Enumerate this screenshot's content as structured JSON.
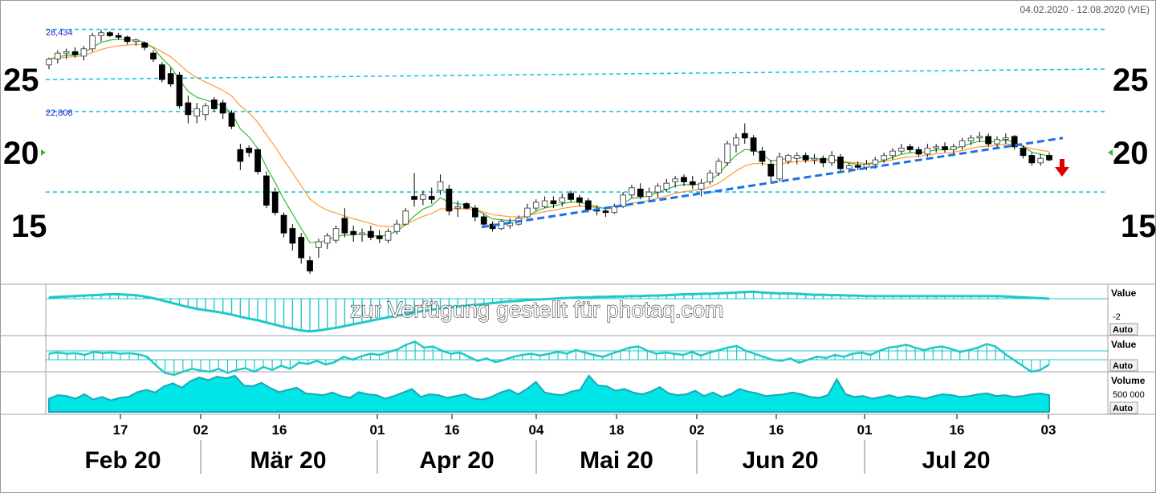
{
  "date_range": "04.02.2020 - 12.08.2020 (VIE)",
  "watermark": "zur Verfügung gestellt für photaq.com",
  "price_axis": {
    "ticks": [
      "25",
      "20",
      "15"
    ]
  },
  "levels": {
    "top_label": "28,434",
    "mid_label": "22,808"
  },
  "panes": {
    "macd": {
      "title": "Value",
      "tick": "-2",
      "auto": "Auto"
    },
    "osc": {
      "title": "Value",
      "auto": "Auto"
    },
    "volume": {
      "title": "Volume",
      "tick": "500 000",
      "auto": "Auto"
    }
  },
  "x_axis": {
    "days": [
      "17",
      "02",
      "16",
      "01",
      "16",
      "04",
      "18",
      "02",
      "16",
      "01",
      "16",
      "03"
    ],
    "months": [
      "Feb 20",
      "Mär 20",
      "Apr 20",
      "Mai 20",
      "Jun 20",
      "Jul 20"
    ]
  },
  "colors": {
    "up_candle": "#ffffff",
    "down_candle": "#000000",
    "ma_fast": "#33bb33",
    "ma_slow": "#ff9933",
    "level_line": "#00c8d8",
    "trendline": "#1a73e8",
    "signal_arrow": "#e00000",
    "indicator": "#20c8c8"
  },
  "chart_data": {
    "type": "candlestick",
    "y_range": [
      11.5,
      29.5
    ],
    "levels": [
      28.434,
      22.808,
      17.3
    ],
    "days": [
      "17",
      "02",
      "16",
      "01",
      "16",
      "04",
      "18",
      "02",
      "16",
      "01",
      "16",
      "03"
    ],
    "months": [
      "Feb 20",
      "Mär 20",
      "Apr 20",
      "Mai 20",
      "Jun 20",
      "Jul 20"
    ],
    "series": [
      {
        "name": "price",
        "values": [
          {
            "o": 26.0,
            "h": 26.5,
            "l": 25.7,
            "c": 26.4
          },
          {
            "o": 26.4,
            "h": 27.0,
            "l": 26.1,
            "c": 26.8
          },
          {
            "o": 26.8,
            "h": 27.1,
            "l": 26.4,
            "c": 26.9
          },
          {
            "o": 26.9,
            "h": 27.2,
            "l": 26.5,
            "c": 26.7
          },
          {
            "o": 26.6,
            "h": 27.3,
            "l": 26.3,
            "c": 27.1
          },
          {
            "o": 27.1,
            "h": 28.2,
            "l": 26.9,
            "c": 28.0
          },
          {
            "o": 28.0,
            "h": 28.4,
            "l": 27.6,
            "c": 28.2
          },
          {
            "o": 28.2,
            "h": 28.3,
            "l": 27.9,
            "c": 28.0
          },
          {
            "o": 28.0,
            "h": 28.2,
            "l": 27.7,
            "c": 27.9
          },
          {
            "o": 27.9,
            "h": 28.0,
            "l": 27.4,
            "c": 27.6
          },
          {
            "o": 27.6,
            "h": 27.8,
            "l": 27.3,
            "c": 27.7
          },
          {
            "o": 27.5,
            "h": 27.6,
            "l": 27.0,
            "c": 27.2
          },
          {
            "o": 26.8,
            "h": 27.0,
            "l": 26.2,
            "c": 26.4
          },
          {
            "o": 26.0,
            "h": 26.2,
            "l": 24.8,
            "c": 25.0
          },
          {
            "o": 25.4,
            "h": 25.8,
            "l": 24.5,
            "c": 24.7
          },
          {
            "o": 25.3,
            "h": 25.5,
            "l": 23.0,
            "c": 23.2
          },
          {
            "o": 23.4,
            "h": 23.9,
            "l": 22.0,
            "c": 22.6
          },
          {
            "o": 22.5,
            "h": 23.4,
            "l": 22.0,
            "c": 23.0
          },
          {
            "o": 22.6,
            "h": 23.4,
            "l": 22.2,
            "c": 23.2
          },
          {
            "o": 23.6,
            "h": 23.8,
            "l": 22.8,
            "c": 23.0
          },
          {
            "o": 23.4,
            "h": 23.6,
            "l": 22.3,
            "c": 22.7
          },
          {
            "o": 22.7,
            "h": 22.9,
            "l": 21.6,
            "c": 21.8
          },
          {
            "o": 20.2,
            "h": 20.6,
            "l": 18.8,
            "c": 19.4
          },
          {
            "o": 20.3,
            "h": 20.5,
            "l": 19.7,
            "c": 20.0
          },
          {
            "o": 20.2,
            "h": 20.3,
            "l": 18.5,
            "c": 18.7
          },
          {
            "o": 18.4,
            "h": 18.7,
            "l": 16.2,
            "c": 16.4
          },
          {
            "o": 17.3,
            "h": 17.6,
            "l": 15.7,
            "c": 15.9
          },
          {
            "o": 15.7,
            "h": 15.9,
            "l": 14.2,
            "c": 14.5
          },
          {
            "o": 14.8,
            "h": 15.1,
            "l": 13.3,
            "c": 13.8
          },
          {
            "o": 14.2,
            "h": 14.5,
            "l": 12.4,
            "c": 12.8
          },
          {
            "o": 12.6,
            "h": 12.9,
            "l": 11.7,
            "c": 11.9
          },
          {
            "o": 13.5,
            "h": 14.1,
            "l": 12.8,
            "c": 13.9
          },
          {
            "o": 13.8,
            "h": 14.5,
            "l": 13.4,
            "c": 14.3
          },
          {
            "o": 14.0,
            "h": 15.0,
            "l": 13.8,
            "c": 14.8
          },
          {
            "o": 15.5,
            "h": 16.2,
            "l": 14.2,
            "c": 14.5
          },
          {
            "o": 14.6,
            "h": 15.0,
            "l": 13.9,
            "c": 14.4
          },
          {
            "o": 14.4,
            "h": 14.8,
            "l": 13.9,
            "c": 14.5
          },
          {
            "o": 14.6,
            "h": 15.0,
            "l": 14.0,
            "c": 14.2
          },
          {
            "o": 14.3,
            "h": 14.7,
            "l": 13.8,
            "c": 14.1
          },
          {
            "o": 14.0,
            "h": 14.8,
            "l": 13.8,
            "c": 14.6
          },
          {
            "o": 14.6,
            "h": 15.4,
            "l": 14.4,
            "c": 15.1
          },
          {
            "o": 15.1,
            "h": 16.2,
            "l": 15.0,
            "c": 16.0
          },
          {
            "o": 17.0,
            "h": 18.6,
            "l": 16.3,
            "c": 16.8
          },
          {
            "o": 16.8,
            "h": 17.4,
            "l": 16.4,
            "c": 17.1
          },
          {
            "o": 17.0,
            "h": 17.6,
            "l": 16.5,
            "c": 16.8
          },
          {
            "o": 17.4,
            "h": 18.5,
            "l": 17.1,
            "c": 18.0
          },
          {
            "o": 17.5,
            "h": 17.8,
            "l": 15.7,
            "c": 16.0
          },
          {
            "o": 16.2,
            "h": 16.7,
            "l": 15.6,
            "c": 16.3
          },
          {
            "o": 16.5,
            "h": 16.6,
            "l": 16.1,
            "c": 16.2
          },
          {
            "o": 16.2,
            "h": 16.4,
            "l": 15.3,
            "c": 15.6
          },
          {
            "o": 15.6,
            "h": 15.8,
            "l": 14.9,
            "c": 15.1
          },
          {
            "o": 15.1,
            "h": 15.3,
            "l": 14.6,
            "c": 14.8
          },
          {
            "o": 14.8,
            "h": 15.4,
            "l": 14.7,
            "c": 15.3
          },
          {
            "o": 15.0,
            "h": 15.5,
            "l": 14.8,
            "c": 15.2
          },
          {
            "o": 15.1,
            "h": 15.7,
            "l": 15.0,
            "c": 15.5
          },
          {
            "o": 15.6,
            "h": 16.5,
            "l": 15.5,
            "c": 16.2
          },
          {
            "o": 16.2,
            "h": 16.8,
            "l": 16.0,
            "c": 16.6
          },
          {
            "o": 16.3,
            "h": 17.0,
            "l": 16.2,
            "c": 16.7
          },
          {
            "o": 16.7,
            "h": 17.0,
            "l": 16.2,
            "c": 16.5
          },
          {
            "o": 16.6,
            "h": 17.2,
            "l": 16.3,
            "c": 16.9
          },
          {
            "o": 17.2,
            "h": 17.4,
            "l": 16.6,
            "c": 16.8
          },
          {
            "o": 16.9,
            "h": 17.1,
            "l": 16.3,
            "c": 16.6
          },
          {
            "o": 16.7,
            "h": 16.9,
            "l": 15.9,
            "c": 16.1
          },
          {
            "o": 16.1,
            "h": 16.4,
            "l": 15.7,
            "c": 16.0
          },
          {
            "o": 16.0,
            "h": 16.3,
            "l": 15.6,
            "c": 15.9
          },
          {
            "o": 15.9,
            "h": 16.5,
            "l": 15.8,
            "c": 16.3
          },
          {
            "o": 16.3,
            "h": 17.3,
            "l": 16.2,
            "c": 17.1
          },
          {
            "o": 17.1,
            "h": 17.8,
            "l": 16.9,
            "c": 17.6
          },
          {
            "o": 17.5,
            "h": 17.9,
            "l": 16.8,
            "c": 17.0
          },
          {
            "o": 17.0,
            "h": 17.6,
            "l": 16.7,
            "c": 17.3
          },
          {
            "o": 17.3,
            "h": 17.9,
            "l": 16.9,
            "c": 17.7
          },
          {
            "o": 17.5,
            "h": 18.2,
            "l": 17.3,
            "c": 17.9
          },
          {
            "o": 18.0,
            "h": 18.4,
            "l": 17.6,
            "c": 18.2
          },
          {
            "o": 18.3,
            "h": 18.5,
            "l": 17.7,
            "c": 18.0
          },
          {
            "o": 18.0,
            "h": 18.4,
            "l": 17.5,
            "c": 17.8
          },
          {
            "o": 17.5,
            "h": 18.2,
            "l": 17.0,
            "c": 17.9
          },
          {
            "o": 18.0,
            "h": 18.8,
            "l": 17.8,
            "c": 18.6
          },
          {
            "o": 18.6,
            "h": 19.6,
            "l": 18.4,
            "c": 19.4
          },
          {
            "o": 19.3,
            "h": 20.8,
            "l": 19.1,
            "c": 20.6
          },
          {
            "o": 20.5,
            "h": 21.3,
            "l": 20.0,
            "c": 21.0
          },
          {
            "o": 21.3,
            "h": 22.0,
            "l": 20.6,
            "c": 21.0
          },
          {
            "o": 21.0,
            "h": 21.2,
            "l": 19.8,
            "c": 20.1
          },
          {
            "o": 20.1,
            "h": 20.4,
            "l": 19.1,
            "c": 19.4
          },
          {
            "o": 19.2,
            "h": 19.5,
            "l": 18.0,
            "c": 18.4
          },
          {
            "o": 18.2,
            "h": 20.0,
            "l": 18.0,
            "c": 19.7
          },
          {
            "o": 19.4,
            "h": 19.9,
            "l": 19.2,
            "c": 19.8
          },
          {
            "o": 19.6,
            "h": 20.0,
            "l": 19.2,
            "c": 19.8
          },
          {
            "o": 19.8,
            "h": 20.0,
            "l": 19.3,
            "c": 19.5
          },
          {
            "o": 19.5,
            "h": 19.9,
            "l": 19.2,
            "c": 19.6
          },
          {
            "o": 19.6,
            "h": 19.8,
            "l": 19.0,
            "c": 19.3
          },
          {
            "o": 19.3,
            "h": 20.1,
            "l": 19.1,
            "c": 19.8
          },
          {
            "o": 19.7,
            "h": 19.9,
            "l": 18.7,
            "c": 18.9
          },
          {
            "o": 18.9,
            "h": 19.3,
            "l": 18.6,
            "c": 19.1
          },
          {
            "o": 19.1,
            "h": 19.4,
            "l": 18.8,
            "c": 19.0
          },
          {
            "o": 19.0,
            "h": 19.5,
            "l": 18.8,
            "c": 19.2
          },
          {
            "o": 19.2,
            "h": 19.7,
            "l": 18.9,
            "c": 19.5
          },
          {
            "o": 19.5,
            "h": 20.0,
            "l": 19.3,
            "c": 19.8
          },
          {
            "o": 19.8,
            "h": 20.3,
            "l": 19.5,
            "c": 20.1
          },
          {
            "o": 20.1,
            "h": 20.6,
            "l": 19.9,
            "c": 20.3
          },
          {
            "o": 20.4,
            "h": 20.6,
            "l": 20.0,
            "c": 20.2
          },
          {
            "o": 20.2,
            "h": 20.4,
            "l": 19.7,
            "c": 19.9
          },
          {
            "o": 19.9,
            "h": 20.6,
            "l": 19.7,
            "c": 20.3
          },
          {
            "o": 20.3,
            "h": 20.6,
            "l": 20.0,
            "c": 20.4
          },
          {
            "o": 20.4,
            "h": 20.7,
            "l": 20.0,
            "c": 20.2
          },
          {
            "o": 20.2,
            "h": 20.6,
            "l": 19.8,
            "c": 20.4
          },
          {
            "o": 20.4,
            "h": 21.0,
            "l": 20.2,
            "c": 20.8
          },
          {
            "o": 20.8,
            "h": 21.2,
            "l": 20.5,
            "c": 21.0
          },
          {
            "o": 21.0,
            "h": 21.4,
            "l": 20.7,
            "c": 21.1
          },
          {
            "o": 21.1,
            "h": 21.3,
            "l": 20.4,
            "c": 20.6
          },
          {
            "o": 20.6,
            "h": 21.1,
            "l": 20.3,
            "c": 20.9
          },
          {
            "o": 20.9,
            "h": 21.3,
            "l": 20.6,
            "c": 21.0
          },
          {
            "o": 21.1,
            "h": 21.2,
            "l": 20.2,
            "c": 20.4
          },
          {
            "o": 20.3,
            "h": 20.5,
            "l": 19.6,
            "c": 19.8
          },
          {
            "o": 19.8,
            "h": 20.0,
            "l": 19.1,
            "c": 19.3
          },
          {
            "o": 19.3,
            "h": 19.9,
            "l": 19.1,
            "c": 19.6
          },
          {
            "o": 19.8,
            "h": 20.0,
            "l": 19.4,
            "c": 19.5
          }
        ]
      },
      {
        "name": "ma_fast",
        "values": []
      },
      {
        "name": "ma_slow",
        "values": []
      },
      {
        "name": "trendline",
        "values": [
          {
            "x": 0,
            "y": 14.9
          },
          {
            "x": 1,
            "y": 21.0
          }
        ]
      }
    ],
    "macd": [
      0.3,
      0.4,
      0.5,
      0.6,
      0.7,
      0.8,
      0.9,
      1.0,
      1.0,
      0.9,
      0.8,
      0.5,
      0.1,
      -0.4,
      -0.9,
      -1.4,
      -1.9,
      -2.3,
      -2.6,
      -2.9,
      -3.2,
      -3.6,
      -4.1,
      -4.5,
      -4.9,
      -5.4,
      -5.9,
      -6.4,
      -6.8,
      -7.2,
      -7.4,
      -7.2,
      -6.9,
      -6.6,
      -6.2,
      -5.8,
      -5.4,
      -5.0,
      -4.6,
      -4.2,
      -3.9,
      -3.5,
      -3.1,
      -2.8,
      -2.5,
      -2.2,
      -2.0,
      -1.8,
      -1.6,
      -1.4,
      -1.2,
      -1.0,
      -0.8,
      -0.6,
      -0.5,
      -0.3,
      -0.2,
      -0.1,
      0.0,
      0.1,
      0.2,
      0.3,
      0.3,
      0.4,
      0.4,
      0.5,
      0.5,
      0.6,
      0.6,
      0.7,
      0.7,
      0.8,
      0.9,
      1.0,
      1.0,
      1.1,
      1.1,
      1.2,
      1.3,
      1.4,
      1.5,
      1.6,
      1.4,
      1.3,
      1.2,
      1.2,
      1.1,
      1.0,
      0.9,
      0.9,
      0.8,
      0.8,
      0.7,
      0.7,
      0.6,
      0.6,
      0.6,
      0.6,
      0.6,
      0.6,
      0.6,
      0.6,
      0.6,
      0.6,
      0.6,
      0.6,
      0.6,
      0.6,
      0.6,
      0.6,
      0.5,
      0.4,
      0.3,
      0.2,
      0.1,
      0.0
    ],
    "osc": [
      60,
      62,
      60,
      61,
      58,
      63,
      61,
      62,
      60,
      61,
      59,
      55,
      40,
      28,
      25,
      30,
      35,
      32,
      30,
      35,
      28,
      33,
      36,
      30,
      38,
      33,
      40,
      35,
      45,
      43,
      48,
      42,
      46,
      55,
      50,
      56,
      60,
      58,
      63,
      67,
      75,
      80,
      70,
      72,
      65,
      60,
      62,
      55,
      48,
      52,
      46,
      50,
      55,
      58,
      60,
      57,
      60,
      63,
      60,
      66,
      62,
      58,
      55,
      60,
      65,
      70,
      72,
      65,
      60,
      62,
      60,
      58,
      63,
      57,
      62,
      66,
      70,
      73,
      65,
      60,
      55,
      50,
      48,
      52,
      45,
      50,
      55,
      53,
      58,
      55,
      60,
      62,
      58,
      65,
      70,
      72,
      75,
      70,
      66,
      70,
      72,
      68,
      63,
      66,
      70,
      76,
      72,
      60,
      50,
      40,
      30,
      33,
      42
    ],
    "volume": [
      30,
      38,
      36,
      30,
      40,
      28,
      34,
      26,
      32,
      34,
      45,
      50,
      44,
      58,
      65,
      55,
      70,
      78,
      72,
      80,
      76,
      82,
      60,
      58,
      66,
      54,
      45,
      50,
      55,
      42,
      40,
      38,
      44,
      36,
      32,
      45,
      40,
      38,
      30,
      36,
      44,
      52,
      34,
      40,
      38,
      32,
      36,
      40,
      30,
      28,
      34,
      44,
      50,
      40,
      52,
      68,
      44,
      40,
      38,
      46,
      50,
      82,
      60,
      58,
      48,
      52,
      44,
      40,
      46,
      56,
      42,
      38,
      40,
      48,
      36,
      44,
      34,
      40,
      52,
      46,
      42,
      36,
      38,
      40,
      44,
      40,
      34,
      32,
      38,
      74,
      40,
      34,
      36,
      30,
      34,
      38,
      32,
      36,
      34,
      30,
      36,
      40,
      38,
      34,
      36,
      40,
      42,
      36,
      38,
      34,
      36,
      40,
      42,
      38
    ]
  }
}
